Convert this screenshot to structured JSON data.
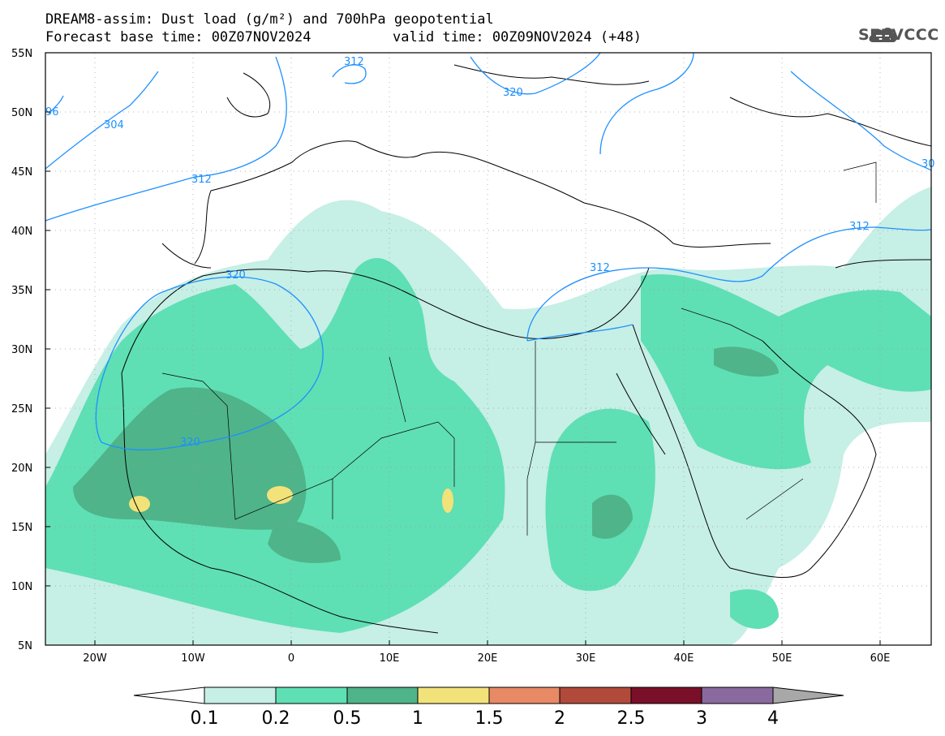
{
  "header": {
    "title": "DREAM8-assim: Dust load (g/m²) and 700hPa geopotential",
    "base_time": "Forecast base time: 00Z07NOV2024",
    "valid_time": "valid time: 00Z09NOV2024 (+48)"
  },
  "logo": {
    "text": "SEEVCCC",
    "icon": "cloud-logo-icon"
  },
  "map": {
    "lat_range": [
      5,
      55
    ],
    "lon_range": [
      -25,
      65
    ],
    "lat_ticks": [
      "55N",
      "50N",
      "45N",
      "40N",
      "35N",
      "30N",
      "25N",
      "20N",
      "15N",
      "10N",
      "5N"
    ],
    "lon_ticks": [
      "20W",
      "10W",
      "0",
      "10E",
      "20E",
      "30E",
      "40E",
      "50E",
      "60E"
    ],
    "contour_labels": [
      "312",
      "320",
      "304",
      "96",
      "312",
      "320",
      "312",
      "312",
      "30",
      "312",
      "320"
    ],
    "contour_color": "#1e90ff"
  },
  "colorbar": {
    "labels": [
      "0.1",
      "0.2",
      "0.5",
      "1",
      "1.5",
      "2",
      "2.5",
      "3",
      "4"
    ],
    "colors": [
      "#c6efe6",
      "#5fdfb4",
      "#4fb48a",
      "#f2e27a",
      "#e78a65",
      "#b24a3b",
      "#7a0f29",
      "#8a6a9e",
      "#a8a8a8"
    ]
  }
}
